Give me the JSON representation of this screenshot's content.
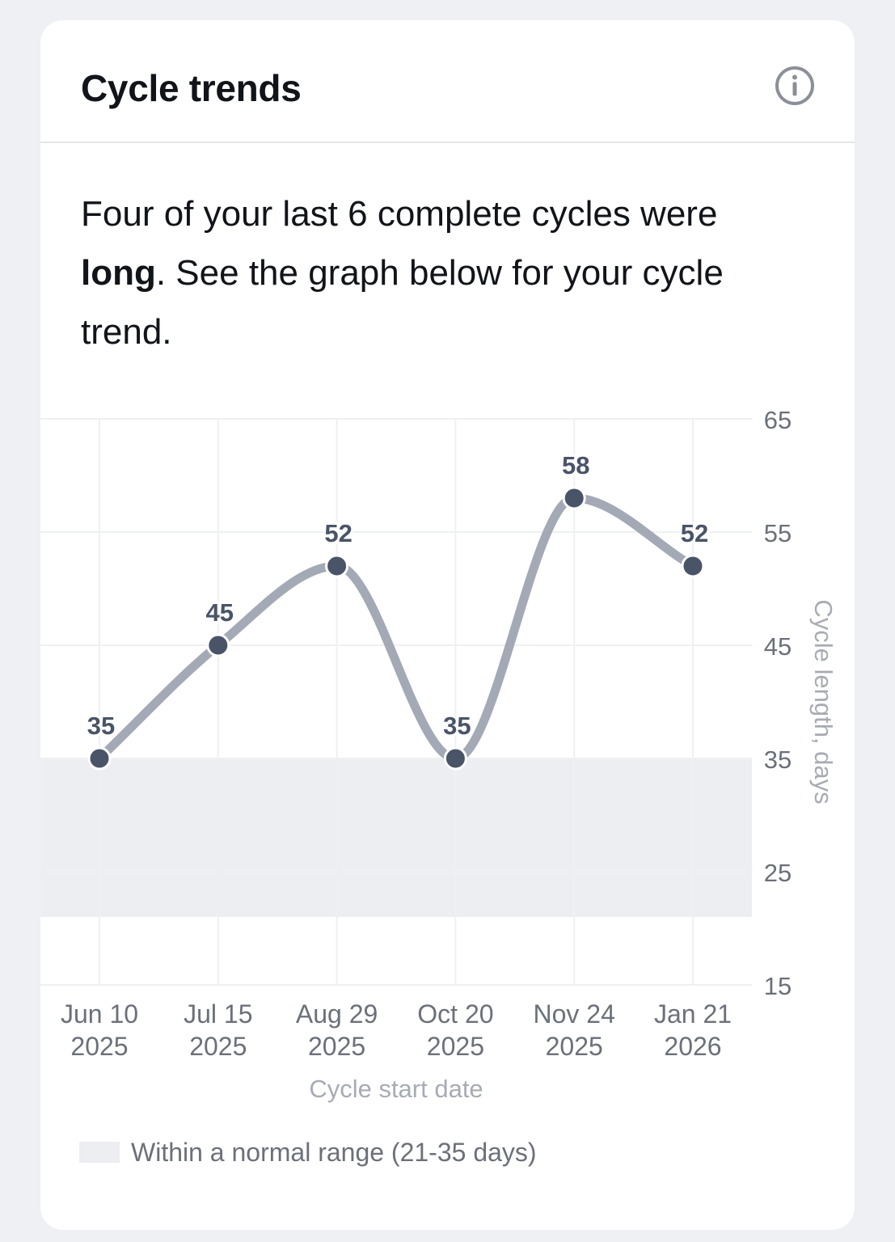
{
  "card": {
    "title": "Cycle trends",
    "info_icon": "info-circle-icon",
    "summary": {
      "lead": "Four of your last 6 complete cycles were ",
      "emphasis": "long",
      "tail": ". See the graph below for your cycle trend."
    }
  },
  "chart_data": {
    "type": "line",
    "categories": [
      [
        "Jun 10",
        "2025"
      ],
      [
        "Jul 15",
        "2025"
      ],
      [
        "Aug 29",
        "2025"
      ],
      [
        "Oct 20",
        "2025"
      ],
      [
        "Nov 24",
        "2025"
      ],
      [
        "Jan 21",
        "2026"
      ]
    ],
    "values": [
      35,
      45,
      52,
      35,
      58,
      52
    ],
    "ylim": [
      15,
      65
    ],
    "yticks": [
      15,
      25,
      35,
      45,
      55,
      65
    ],
    "xlabel": "Cycle start date",
    "ylabel": "Cycle length, days",
    "normal_range": [
      21,
      35
    ],
    "y_axis_side": "right",
    "grid": true,
    "colors": {
      "line": "#a3a9b5",
      "point": "#4a5468",
      "value_label": "#4a5468",
      "band": "#eceef1",
      "grid": "#eef0f2",
      "axis_text": "#6b7079",
      "axis_title": "#a7abb3"
    }
  },
  "legend": {
    "label": "Within a normal range (21-35 days)"
  }
}
